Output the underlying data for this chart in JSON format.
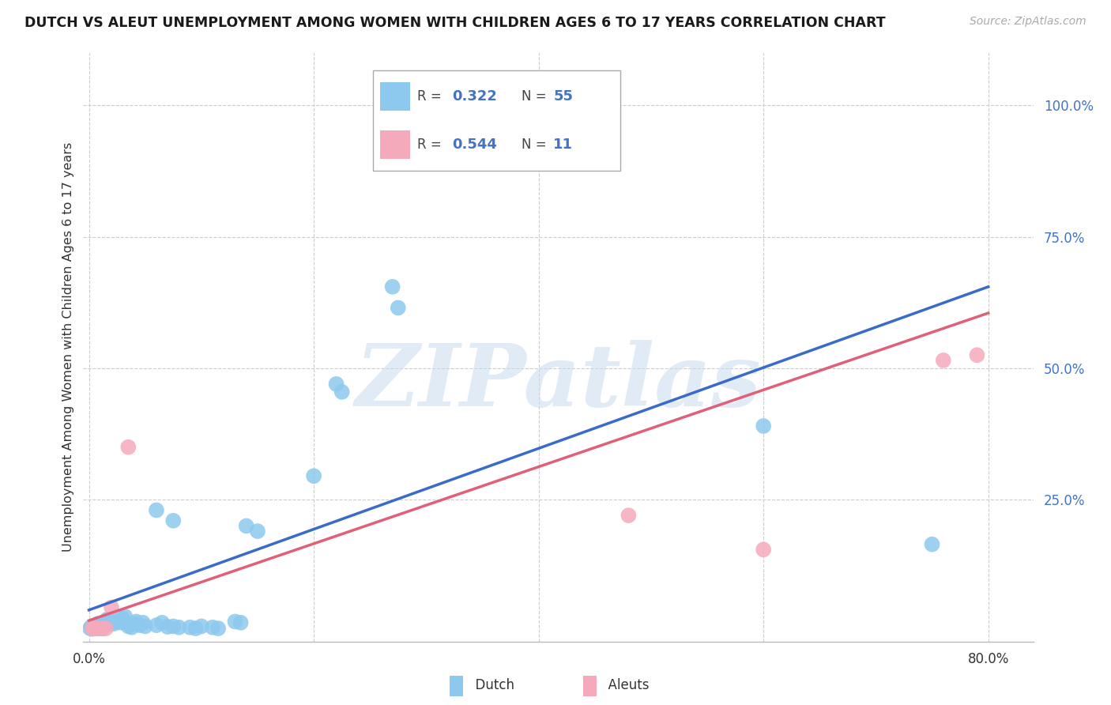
{
  "title": "DUTCH VS ALEUT UNEMPLOYMENT AMONG WOMEN WITH CHILDREN AGES 6 TO 17 YEARS CORRELATION CHART",
  "source": "Source: ZipAtlas.com",
  "ylabel": "Unemployment Among Women with Children Ages 6 to 17 years",
  "xlim": [
    -0.005,
    0.84
  ],
  "ylim": [
    -0.02,
    1.1
  ],
  "xticks": [
    0.0,
    0.2,
    0.4,
    0.6,
    0.8
  ],
  "xtick_labels": [
    "0.0%",
    "",
    "",
    "",
    "80.0%"
  ],
  "ytick_positions": [
    0.25,
    0.5,
    0.75,
    1.0
  ],
  "ytick_labels": [
    "25.0%",
    "50.0%",
    "75.0%",
    "100.0%"
  ],
  "dutch_color": "#8DC8EE",
  "aleut_color": "#F5AABB",
  "dutch_line_color": "#3A6BC9",
  "aleut_line_color": "#E0607A",
  "background_color": "#ffffff",
  "grid_color": "#cccccc",
  "watermark_text": "ZIPatlas",
  "dutch_points_x": [
    0.001,
    0.002,
    0.003,
    0.004,
    0.005,
    0.006,
    0.007,
    0.008,
    0.009,
    0.01,
    0.011,
    0.012,
    0.013,
    0.014,
    0.015,
    0.016,
    0.017,
    0.018,
    0.019,
    0.02,
    0.022,
    0.024,
    0.025,
    0.028,
    0.03,
    0.032,
    0.035,
    0.038,
    0.04,
    0.042,
    0.045,
    0.048,
    0.05,
    0.06,
    0.065,
    0.07,
    0.075,
    0.08,
    0.09,
    0.095,
    0.1,
    0.11,
    0.115,
    0.13,
    0.135,
    0.06,
    0.075,
    0.14,
    0.15,
    0.2,
    0.22,
    0.225,
    0.27,
    0.275,
    0.6,
    0.75
  ],
  "dutch_points_y": [
    0.005,
    0.008,
    0.004,
    0.006,
    0.01,
    0.007,
    0.005,
    0.014,
    0.009,
    0.006,
    0.005,
    0.005,
    0.008,
    0.01,
    0.018,
    0.022,
    0.02,
    0.018,
    0.016,
    0.016,
    0.014,
    0.018,
    0.02,
    0.016,
    0.024,
    0.028,
    0.009,
    0.007,
    0.014,
    0.018,
    0.011,
    0.016,
    0.009,
    0.011,
    0.016,
    0.008,
    0.009,
    0.007,
    0.007,
    0.005,
    0.009,
    0.007,
    0.005,
    0.018,
    0.016,
    0.23,
    0.21,
    0.2,
    0.19,
    0.295,
    0.47,
    0.455,
    0.655,
    0.615,
    0.39,
    0.165
  ],
  "aleut_points_x": [
    0.003,
    0.005,
    0.008,
    0.012,
    0.015,
    0.02,
    0.035,
    0.48,
    0.6,
    0.76,
    0.79
  ],
  "aleut_points_y": [
    0.005,
    0.005,
    0.005,
    0.005,
    0.005,
    0.045,
    0.35,
    0.22,
    0.155,
    0.515,
    0.525
  ],
  "dutch_line_x0": 0.0,
  "dutch_line_y0": 0.04,
  "dutch_line_x1": 0.8,
  "dutch_line_y1": 0.655,
  "aleut_line_x0": 0.0,
  "aleut_line_y0": 0.02,
  "aleut_line_x1": 0.8,
  "aleut_line_y1": 0.605
}
